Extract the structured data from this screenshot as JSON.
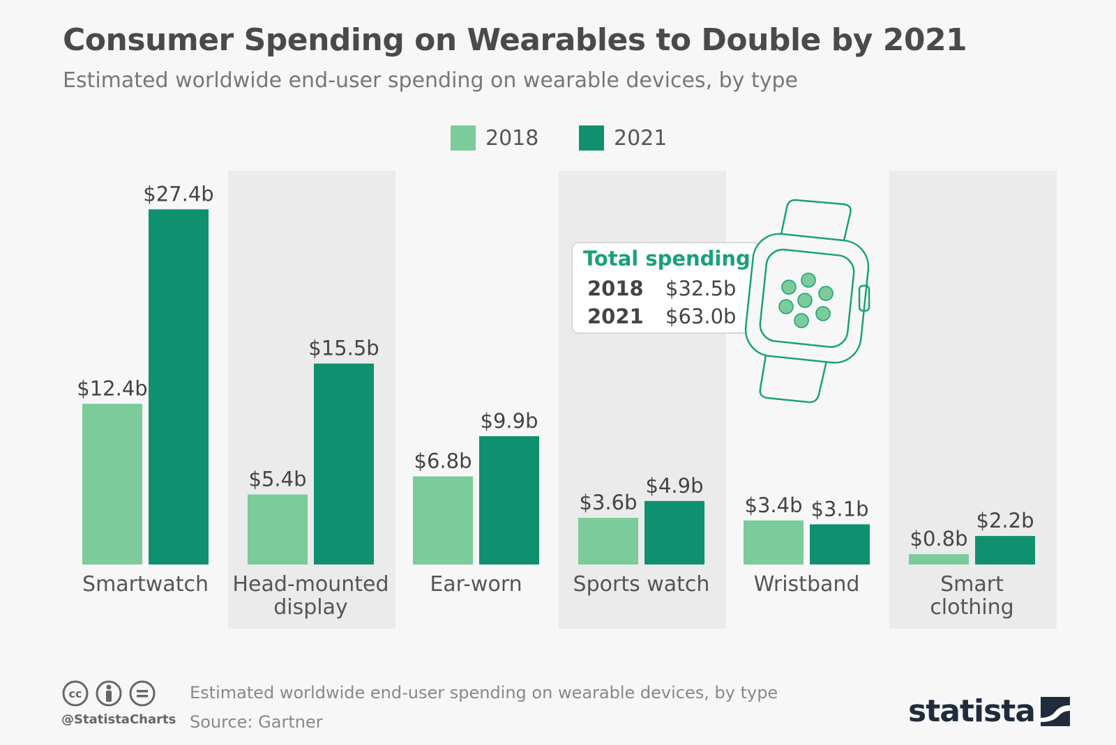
{
  "header": {
    "title": "Consumer Spending on Wearables to Double by 2021",
    "subtitle": "Estimated worldwide end-user spending on wearable devices, by type"
  },
  "colors": {
    "light": "#7bcb9b",
    "dark": "#0f9170",
    "band": "#ebebeb",
    "accent": "#19a07a",
    "brand": "#1f2c3d"
  },
  "chart_data": {
    "type": "bar",
    "categories": [
      "Smartwatch",
      "Head-mounted display",
      "Ear-worn",
      "Sports watch",
      "Wristband",
      "Smart clothing"
    ],
    "series": [
      {
        "name": "2018",
        "values": [
          12.4,
          5.4,
          6.8,
          3.6,
          3.4,
          0.8
        ],
        "labels": [
          "$12.4b",
          "$5.4b",
          "$6.8b",
          "$3.6b",
          "$3.4b",
          "$0.8b"
        ]
      },
      {
        "name": "2021",
        "values": [
          27.4,
          15.5,
          9.9,
          4.9,
          3.1,
          2.2
        ],
        "labels": [
          "$27.4b",
          "$15.5b",
          "$9.9b",
          "$4.9b",
          "$3.1b",
          "$2.2b"
        ]
      }
    ],
    "ylim": [
      0,
      30
    ],
    "legend": "top-center"
  },
  "category_label_lines": [
    [
      "Smartwatch"
    ],
    [
      "Head-mounted",
      "display"
    ],
    [
      "Ear-worn"
    ],
    [
      "Sports watch"
    ],
    [
      "Wristband"
    ],
    [
      "Smart",
      "clothing"
    ]
  ],
  "callout": {
    "heading": "Total spending",
    "rows": [
      {
        "year": "2018",
        "value": "$32.5b"
      },
      {
        "year": "2021",
        "value": "$63.0b"
      }
    ],
    "icon": "smartwatch-icon"
  },
  "footer": {
    "handle": "@StatistaCharts",
    "description": "Estimated worldwide end-user spending on wearable devices, by type",
    "source": "Source: Gartner",
    "brand": "statista",
    "license_icons": [
      "cc-icon",
      "attribution-icon",
      "no-derivatives-icon"
    ]
  }
}
